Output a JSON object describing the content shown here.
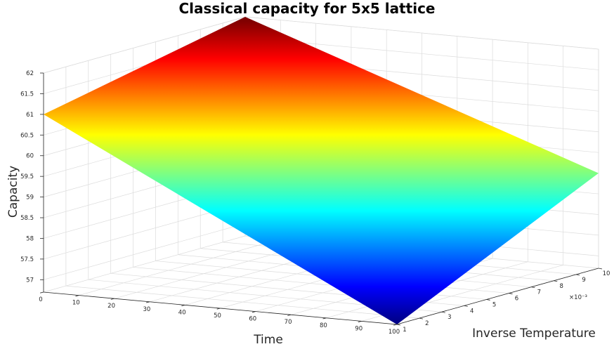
{
  "chart_data": {
    "type": "surface",
    "title": "Classical capacity for 5x5 lattice",
    "xlabel": "Time",
    "ylabel": "Inverse Temperature",
    "zlabel": "Capacity",
    "x_ticks": [
      "0",
      "10",
      "20",
      "30",
      "40",
      "50",
      "60",
      "70",
      "80",
      "90",
      "100"
    ],
    "y_ticks": [
      "1",
      "2",
      "3",
      "4",
      "5",
      "6",
      "7",
      "8",
      "9",
      "10"
    ],
    "y_exponent": "×10⁻³",
    "z_ticks": [
      "57",
      "57.5",
      "58",
      "58.5",
      "59",
      "59.5",
      "60",
      "60.5",
      "61",
      "61.5",
      "62"
    ],
    "xlim": [
      0,
      100
    ],
    "ylim": [
      0.001,
      0.01
    ],
    "zlim": [
      56.7,
      62
    ],
    "colormap": "jet",
    "grid": true,
    "surface_corners": [
      {
        "time": 0,
        "inverse_temperature": 0.001,
        "capacity": 61
      },
      {
        "time": 0,
        "inverse_temperature": 0.01,
        "capacity": 62
      },
      {
        "time": 100,
        "inverse_temperature": 0.01,
        "capacity": 59
      },
      {
        "time": 100,
        "inverse_temperature": 0.001,
        "capacity": 56.7
      }
    ]
  }
}
